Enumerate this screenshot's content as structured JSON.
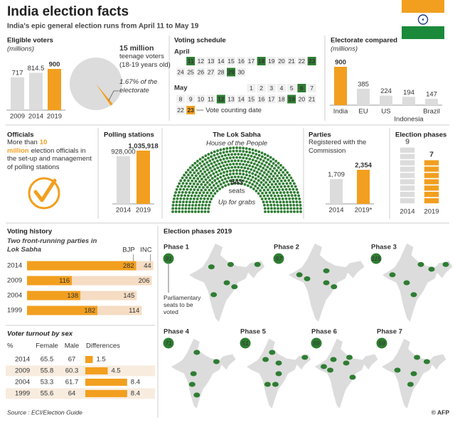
{
  "header": {
    "title": "India election facts",
    "subtitle": "India's epic general election runs from April 11 to May 19"
  },
  "footer": {
    "source": "Source : ECI/Election Guide",
    "credit": "© AFP"
  },
  "officials": {
    "title": "Officials",
    "lead": "More than",
    "highlight": "10 million",
    "text": "election officials in the set-up and management of polling stations"
  },
  "schedule": {
    "title": "Voting schedule",
    "vote_color": "#2e7d32",
    "count_color": "#f29f1f",
    "counting_label": "Vote counting date",
    "months": [
      {
        "name": "April",
        "days": [
          11,
          12,
          13,
          14,
          15,
          16,
          17,
          18,
          19,
          20,
          21,
          22,
          23,
          24,
          25,
          26,
          27,
          28,
          29,
          30
        ],
        "voting_days": [
          11,
          18,
          23,
          29
        ]
      },
      {
        "name": "May",
        "days": [
          1,
          2,
          3,
          4,
          5,
          6,
          7,
          8,
          9,
          10,
          11,
          12,
          13,
          14,
          15,
          16,
          17,
          18,
          19,
          20,
          21,
          22,
          23
        ],
        "voting_days": [
          6,
          12,
          19
        ],
        "counting_day": 23
      }
    ]
  },
  "chart_data": [
    {
      "type": "bar",
      "title": "Eligible voters",
      "subtitle": "(millions)",
      "categories": [
        "2009",
        "2014",
        "2019"
      ],
      "values": [
        717,
        814.5,
        900
      ],
      "colors": [
        "#dcdcdc",
        "#dcdcdc",
        "#f29f1f"
      ]
    },
    {
      "type": "pie",
      "highlight": "15 million",
      "note": "teenage voters (18-19 years old)",
      "values": [
        1.67
      ],
      "value_labels": [
        "1.67% of the electorate"
      ],
      "color": "#f29f1f"
    },
    {
      "type": "bar",
      "title": "Electorate compared",
      "subtitle": "(millions)",
      "categories": [
        "India",
        "EU",
        "US",
        "Indonesia",
        "Brazil"
      ],
      "values": [
        900,
        385,
        224,
        194,
        147
      ],
      "colors": [
        "#f29f1f",
        "#dcdcdc",
        "#dcdcdc",
        "#dcdcdc",
        "#dcdcdc"
      ]
    },
    {
      "type": "bar",
      "title": "Polling stations",
      "categories": [
        "2014",
        "2019"
      ],
      "values": [
        928000,
        1035918
      ],
      "value_labels": [
        "928,000",
        "1,035,918"
      ],
      "colors": [
        "#dcdcdc",
        "#f29f1f"
      ]
    },
    {
      "type": "bar",
      "title": "Parties",
      "subtitle": "Registered with the Commission",
      "categories": [
        "2014",
        "2019*"
      ],
      "values": [
        1709,
        2354
      ],
      "value_labels": [
        "1,709",
        "2,354"
      ],
      "colors": [
        "#dcdcdc",
        "#f29f1f"
      ]
    },
    {
      "type": "parliament",
      "title": "The Lok Sabha",
      "subtitle": "House of the People",
      "values": [
        543
      ],
      "unit": "seats",
      "note": "Up for grabs",
      "color": "#2e7d32"
    },
    {
      "type": "units",
      "title": "Election phases",
      "categories": [
        "2014",
        "2019"
      ],
      "values": [
        9,
        7
      ],
      "colors": [
        "#dcdcdc",
        "#f29f1f"
      ]
    },
    {
      "type": "hbar-stacked",
      "title": "Voting history",
      "subtitle": "Two front-running parties in Lok Sabha",
      "categories": [
        "2014",
        "2009",
        "2004",
        "1999"
      ],
      "series": [
        {
          "name": "BJP",
          "color": "#f29f1f",
          "values": [
            282,
            116,
            138,
            182
          ]
        },
        {
          "name": "INC",
          "color": "#f5dcc3",
          "values": [
            44,
            206,
            145,
            114
          ]
        }
      ]
    },
    {
      "type": "table-bar",
      "title": "Voter turnout by sex",
      "unit": "%",
      "categories": [
        "2014",
        "2009",
        "2004",
        "1999"
      ],
      "series": [
        {
          "name": "Female",
          "values": [
            65.5,
            55.8,
            53.3,
            55.6
          ]
        },
        {
          "name": "Male",
          "values": [
            67,
            60.3,
            61.7,
            64
          ]
        },
        {
          "name": "Differences",
          "color": "#f29f1f",
          "values": [
            1.5,
            4.5,
            8.4,
            8.4
          ]
        }
      ]
    },
    {
      "type": "map",
      "title": "Election phases 2019",
      "categories": [
        "Phase 1",
        "Phase 2",
        "Phase 3",
        "Phase 4",
        "Phase 5",
        "Phase 6",
        "Phase 7"
      ],
      "values": [
        91,
        97,
        115,
        71,
        51,
        59,
        59
      ],
      "annotation": "Parliamentary seats to be voted",
      "color": "#2e7d32",
      "land_color": "#dcdcdc"
    }
  ]
}
